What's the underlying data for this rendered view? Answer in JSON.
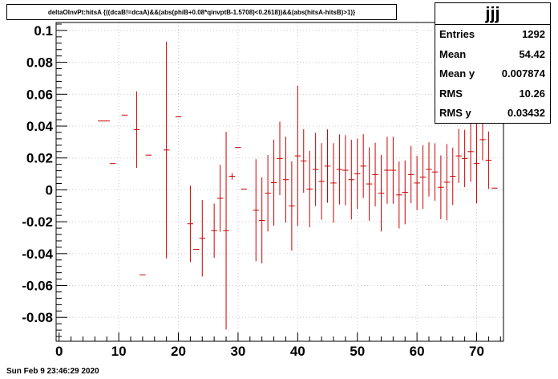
{
  "title": "deltaOInvPt:hitsA {((dcaB!=dcaA)&&(abs(phiB+0.08*qinvptB-1.5708)<0.2618))&&(abs(hitsA-hitsB)>1)}",
  "stats": {
    "name": "jjj",
    "rows": [
      {
        "label": "Entries",
        "value": "1292"
      },
      {
        "label": "Mean",
        "value": "54.42"
      },
      {
        "label": "Mean y",
        "value": "0.007874"
      },
      {
        "label": "RMS",
        "value": "10.26"
      },
      {
        "label": "RMS y",
        "value": "0.03432"
      }
    ]
  },
  "footer": "Sun Feb  9 23:46:29 2020",
  "colors": {
    "marker": "#cc0000",
    "axis": "#000000",
    "grid": "#c8c8c8"
  },
  "chart_data": {
    "type": "scatter",
    "xlim": [
      -0.5,
      74.5
    ],
    "ylim": [
      -0.095,
      0.105
    ],
    "grid": true,
    "x_ticks": [
      "0",
      "10",
      "20",
      "30",
      "40",
      "50",
      "60",
      "70"
    ],
    "y_ticks": [
      "-0.08",
      "-0.06",
      "-0.04",
      "-0.02",
      "0",
      "0.02",
      "0.04",
      "0.06",
      "0.08",
      "0.1"
    ],
    "points": [
      {
        "x": 7,
        "y": 0.0432,
        "err": 0
      },
      {
        "x": 8,
        "y": 0.0432,
        "err": 0
      },
      {
        "x": 9,
        "y": 0.0165,
        "err": 0
      },
      {
        "x": 11,
        "y": 0.0469,
        "err": 0
      },
      {
        "x": 13,
        "y": 0.0378,
        "err": 0.024
      },
      {
        "x": 14,
        "y": -0.0533,
        "err": 0
      },
      {
        "x": 15,
        "y": 0.0218,
        "err": 0
      },
      {
        "x": 18,
        "y": 0.025,
        "err": 0.068
      },
      {
        "x": 20,
        "y": 0.0458,
        "err": 0
      },
      {
        "x": 22,
        "y": -0.0213,
        "err": 0.024
      },
      {
        "x": 23,
        "y": -0.0373,
        "err": 0
      },
      {
        "x": 24,
        "y": -0.0304,
        "err": 0.024
      },
      {
        "x": 26,
        "y": -0.0256,
        "err": 0.017
      },
      {
        "x": 27,
        "y": -0.0053,
        "err": 0.021
      },
      {
        "x": 28,
        "y": -0.0256,
        "err": 0.062
      },
      {
        "x": 29,
        "y": 0.0085,
        "err": 0.002
      },
      {
        "x": 30,
        "y": 0.0266,
        "err": 0
      },
      {
        "x": 31,
        "y": 0.0005,
        "err": 0
      },
      {
        "x": 33,
        "y": -0.0128,
        "err": 0.032
      },
      {
        "x": 34,
        "y": -0.0192,
        "err": 0.027
      },
      {
        "x": 35,
        "y": -0.0021,
        "err": 0.024
      },
      {
        "x": 36,
        "y": 0.0045,
        "err": 0.027
      },
      {
        "x": 37,
        "y": 0.0197,
        "err": 0.023
      },
      {
        "x": 38,
        "y": 0.0064,
        "err": 0.027
      },
      {
        "x": 39,
        "y": -0.0101,
        "err": 0.028
      },
      {
        "x": 40,
        "y": 0.0213,
        "err": 0.044
      },
      {
        "x": 41,
        "y": 0.0181,
        "err": 0.02
      },
      {
        "x": 42,
        "y": 0.0005,
        "err": 0.024
      },
      {
        "x": 43,
        "y": 0.0128,
        "err": 0.023
      },
      {
        "x": 44,
        "y": 0.0053,
        "err": 0.024
      },
      {
        "x": 45,
        "y": 0.0149,
        "err": 0.023
      },
      {
        "x": 46,
        "y": 0.0043,
        "err": 0.025
      },
      {
        "x": 47,
        "y": 0.0128,
        "err": 0.022
      },
      {
        "x": 48,
        "y": 0.0123,
        "err": 0.022
      },
      {
        "x": 49,
        "y": 0.0064,
        "err": 0.025
      },
      {
        "x": 50,
        "y": 0.0101,
        "err": 0.022
      },
      {
        "x": 51,
        "y": 0.0149,
        "err": 0.02
      },
      {
        "x": 52,
        "y": 0.0037,
        "err": 0.023
      },
      {
        "x": 53,
        "y": 0.0096,
        "err": 0.02
      },
      {
        "x": 54,
        "y": -0.0021,
        "err": 0.024
      },
      {
        "x": 55,
        "y": 0.0123,
        "err": 0.021
      },
      {
        "x": 56,
        "y": 0.0123,
        "err": 0.021
      },
      {
        "x": 57,
        "y": -0.0032,
        "err": 0.021
      },
      {
        "x": 58,
        "y": -0.0016,
        "err": 0.02
      },
      {
        "x": 59,
        "y": 0.0096,
        "err": 0.018
      },
      {
        "x": 60,
        "y": 0.0043,
        "err": 0.017
      },
      {
        "x": 61,
        "y": 0.008,
        "err": 0.02
      },
      {
        "x": 62,
        "y": 0.0128,
        "err": 0.017
      },
      {
        "x": 63,
        "y": 0.0112,
        "err": 0.018
      },
      {
        "x": 64,
        "y": 0.0016,
        "err": 0.02
      },
      {
        "x": 65,
        "y": 0.0048,
        "err": 0.024
      },
      {
        "x": 66,
        "y": 0.0085,
        "err": 0.018
      },
      {
        "x": 67,
        "y": 0.0213,
        "err": 0.017
      },
      {
        "x": 68,
        "y": 0.0197,
        "err": 0.018
      },
      {
        "x": 69,
        "y": 0.024,
        "err": 0.019
      },
      {
        "x": 70,
        "y": 0.0165,
        "err": 0.025
      },
      {
        "x": 71,
        "y": 0.0315,
        "err": 0.013
      },
      {
        "x": 72,
        "y": 0.0186,
        "err": 0.018
      },
      {
        "x": 73,
        "y": 0.0011,
        "err": 0
      }
    ]
  }
}
